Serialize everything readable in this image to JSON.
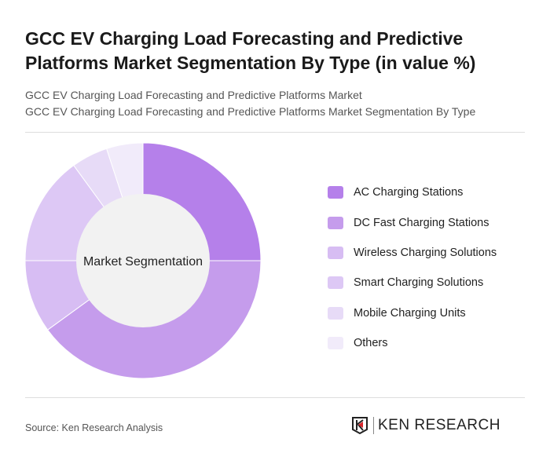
{
  "title": "GCC EV Charging Load Forecasting and Predictive Platforms Market Segmentation By Type (in value %)",
  "subtitles": [
    "GCC EV Charging Load Forecasting and Predictive Platforms Market",
    "GCC EV Charging Load Forecasting and Predictive Platforms Market Segmentation By Type"
  ],
  "source": "Source: Ken Research Analysis",
  "logo_text": "KEN RESEARCH",
  "chart_data": {
    "type": "pie",
    "variant": "donut",
    "center_label": "Market Segmentation",
    "legend_position": "right",
    "categories": [
      "AC Charging Stations",
      "DC Fast Charging Stations",
      "Wireless Charging Solutions",
      "Smart Charging Solutions",
      "Mobile Charging Units",
      "Others"
    ],
    "values": [
      25,
      40,
      10,
      15,
      5,
      5
    ],
    "colors": [
      "#b580ea",
      "#c59cec",
      "#d7bdf3",
      "#ddc8f5",
      "#e7dbf7",
      "#f1ebfa"
    ]
  }
}
